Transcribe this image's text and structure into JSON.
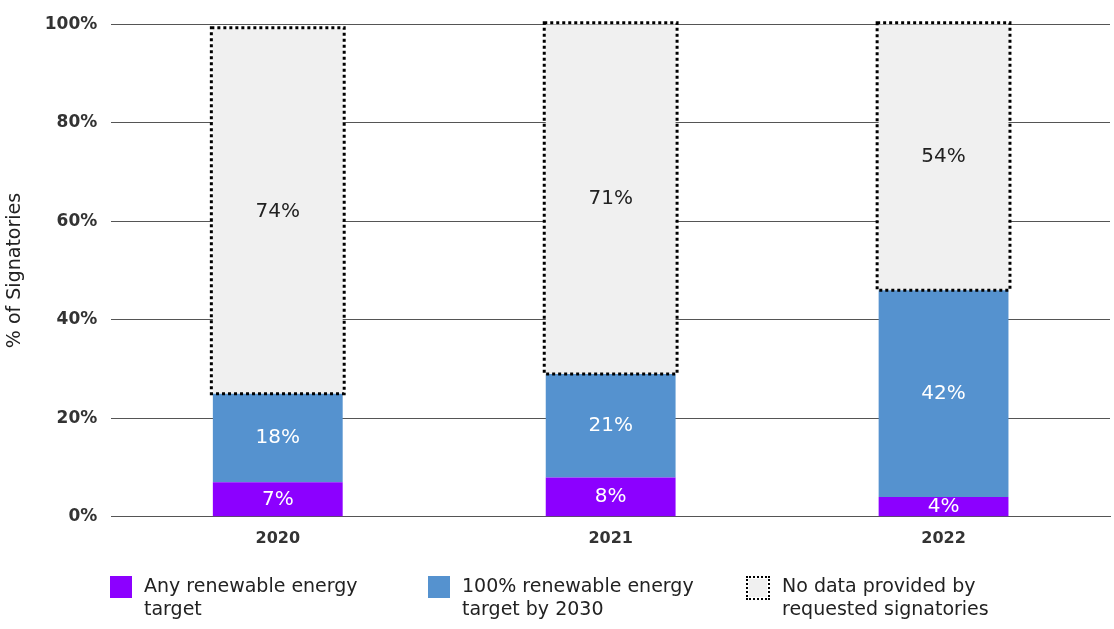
{
  "chart_data": {
    "type": "bar",
    "stacked": true,
    "ylabel": "% of Signatories",
    "categories": [
      "2020",
      "2021",
      "2022"
    ],
    "series": [
      {
        "name": "Any renewable energy target",
        "color": "#8c00ff",
        "values": [
          7,
          8,
          4
        ],
        "value_labels": [
          "7%",
          "8%",
          "4%"
        ]
      },
      {
        "name": "100% renewable energy target by 2030",
        "color": "#5592cf",
        "values": [
          18,
          21,
          42
        ],
        "value_labels": [
          "18%",
          "21%",
          "42%"
        ]
      },
      {
        "name": "No data provided by requested signatories",
        "color": "#f0f0f0",
        "line_style": "dotted",
        "values": [
          74,
          71,
          54
        ],
        "value_labels": [
          "74%",
          "71%",
          "54%"
        ]
      }
    ],
    "ylim": [
      0,
      100
    ],
    "yticks": [
      {
        "value": 0,
        "label": "0%"
      },
      {
        "value": 20,
        "label": "20%"
      },
      {
        "value": 40,
        "label": "40%"
      },
      {
        "value": 60,
        "label": "60%"
      },
      {
        "value": 80,
        "label": "80%"
      },
      {
        "value": 100,
        "label": "100%"
      }
    ],
    "grid": "y",
    "legend": "bottom"
  }
}
